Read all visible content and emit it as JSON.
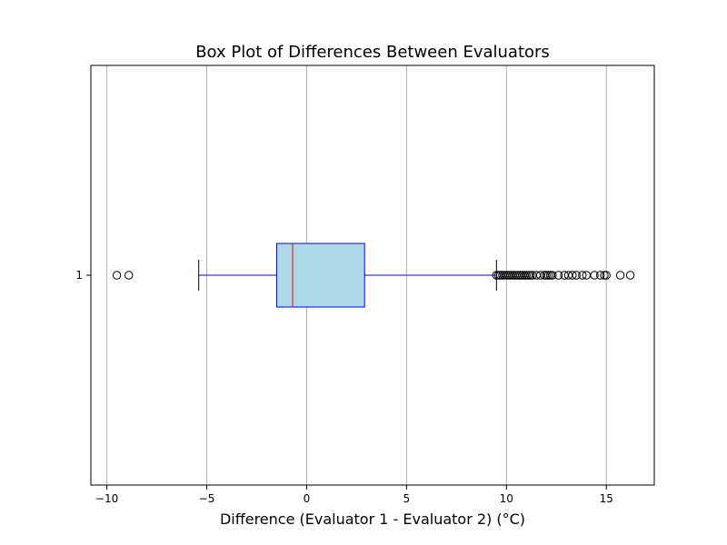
{
  "chart_data": {
    "type": "box",
    "orientation": "horizontal",
    "title": "Box Plot of Differences Between Evaluators",
    "xlabel": "Difference (Evaluator 1 - Evaluator 2) (°C)",
    "ylabel": "",
    "xlim": [
      -10.8,
      17.4
    ],
    "xticks": [
      -10,
      -5,
      0,
      5,
      10,
      15
    ],
    "xtick_labels": [
      "−10",
      "−5",
      "0",
      "5",
      "10",
      "15"
    ],
    "grid": "x-axis vertical lines",
    "categories": [
      "1"
    ],
    "boxes": [
      {
        "category": "1",
        "whisker_low": -5.4,
        "q1": -1.5,
        "median": -0.7,
        "q3": 2.9,
        "whisker_high": 9.5,
        "outliers": [
          -9.5,
          -8.9,
          9.5,
          9.6,
          9.7,
          9.8,
          9.9,
          10.0,
          10.1,
          10.2,
          10.3,
          10.4,
          10.5,
          10.6,
          10.7,
          10.8,
          10.9,
          11.0,
          11.1,
          11.2,
          11.3,
          11.5,
          11.7,
          11.9,
          12.0,
          12.1,
          12.2,
          12.3,
          12.6,
          12.9,
          13.1,
          13.3,
          13.5,
          13.8,
          14.0,
          14.4,
          14.7,
          14.9,
          15.0,
          15.7,
          16.2
        ]
      }
    ],
    "colors": {
      "box_fill": "#add8e6",
      "box_edge": "#0000ff",
      "whisker": "#0000ff",
      "cap": "#000000",
      "median": "#ff0000",
      "outlier_edge": "#000000",
      "grid": "#b0b0b0",
      "axes": "#000000"
    }
  }
}
